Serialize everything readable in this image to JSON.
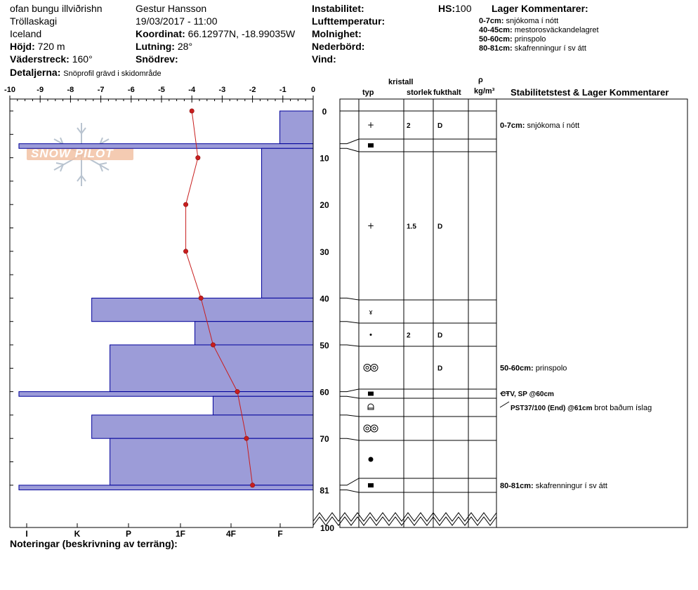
{
  "header": {
    "location": "ofan bungu illviðrishn",
    "region": "Tröllaskagi",
    "country": "Iceland",
    "elevation_label": "Höjd:",
    "elevation_value": "720 m",
    "aspect_label": "Väderstreck:",
    "aspect_value": "160°",
    "details_label": "Detaljerna:",
    "details_value": "Snöprofil grävd i skidområde",
    "observer": "Gestur Hansson",
    "datetime": "19/03/2017 - 11:00",
    "coord_label": "Koordinat:",
    "coord_value": "66.12977N, -18.99035W",
    "slope_label": "Lutning:",
    "slope_value": "28°",
    "drift_label": "Snödrev:",
    "instability_label": "Instabilitet:",
    "air_temp_label": "Lufttemperatur:",
    "cloud_label": "Molnighet:",
    "precip_label": "Nederbörd:",
    "wind_label": "Vind:",
    "hs_label": "HS:",
    "hs_value": "100",
    "layer_comments_title": "Lager Kommentarer:",
    "layer_comments": [
      {
        "range": "0-7cm:",
        "text": "snjókoma í nótt"
      },
      {
        "range": "40-45cm:",
        "text": "mestorosväckandelagret"
      },
      {
        "range": "50-60cm:",
        "text": "prinspolo"
      },
      {
        "range": "80-81cm:",
        "text": "skafrenningur í sv átt"
      }
    ]
  },
  "columns": {
    "kristall": "kristall",
    "typ": "typ",
    "storlek": "storlek",
    "fukthalt": "fukthalt",
    "rho": "ρ",
    "density_unit": "kg/m³",
    "stability": "Stabilitetstest & Lager Kommentarer"
  },
  "notes_label": "Noteringar (beskrivning av terräng):",
  "watermark": "SNOW PILOT",
  "colors": {
    "hardness_fill": "#9c9cd8",
    "hardness_stroke": "#00009a",
    "temp_line": "#c81e1e"
  },
  "chart_data": {
    "type": "bar",
    "temperature_axis": {
      "min": -10,
      "max": 0,
      "ticks": [
        "-10",
        "-9",
        "-8",
        "-7",
        "-6",
        "-5",
        "-4",
        "-3",
        "-2",
        "-1",
        "0"
      ]
    },
    "depth_axis": {
      "min": 0,
      "max": 81,
      "ticks": [
        "0",
        "10",
        "20",
        "30",
        "40",
        "50",
        "60",
        "70",
        "81"
      ],
      "break_label": "100"
    },
    "hardness_ticks": [
      "I",
      "K",
      "P",
      "1F",
      "4F",
      "F"
    ],
    "hardness_layers": [
      {
        "top": 0,
        "bottom": 7,
        "temp_equiv": -1.1
      },
      {
        "top": 7,
        "bottom": 8,
        "temp_equiv": -9.7
      },
      {
        "top": 8,
        "bottom": 40,
        "temp_equiv": -1.7
      },
      {
        "top": 40,
        "bottom": 45,
        "temp_equiv": -7.3
      },
      {
        "top": 45,
        "bottom": 50,
        "temp_equiv": -3.9
      },
      {
        "top": 50,
        "bottom": 60,
        "temp_equiv": -6.7
      },
      {
        "top": 60,
        "bottom": 61,
        "temp_equiv": -9.7
      },
      {
        "top": 61,
        "bottom": 65,
        "temp_equiv": -3.3
      },
      {
        "top": 65,
        "bottom": 70,
        "temp_equiv": -7.3
      },
      {
        "top": 70,
        "bottom": 80,
        "temp_equiv": -6.7
      },
      {
        "top": 80,
        "bottom": 81,
        "temp_equiv": -9.7
      }
    ],
    "temperature_profile": [
      {
        "depth": 0,
        "temp": -4.0
      },
      {
        "depth": 10,
        "temp": -3.8
      },
      {
        "depth": 20,
        "temp": -4.2
      },
      {
        "depth": 30,
        "temp": -4.2
      },
      {
        "depth": 40,
        "temp": -3.7
      },
      {
        "depth": 50,
        "temp": -3.3
      },
      {
        "depth": 60,
        "temp": -2.5
      },
      {
        "depth": 70,
        "temp": -2.2
      },
      {
        "depth": 80,
        "temp": -2.0
      }
    ],
    "layer_rows": [
      {
        "top": 0,
        "bottom": 7,
        "grain": "plus",
        "size": "2",
        "moisture": "D",
        "comment_range": "0-7cm:",
        "comment": "snjókoma í nótt"
      },
      {
        "top": 7,
        "bottom": 8,
        "grain": "square",
        "size": "",
        "moisture": "",
        "comment_range": "",
        "comment": ""
      },
      {
        "top": 8,
        "bottom": 40,
        "grain": "plus",
        "size": "1.5",
        "moisture": "D",
        "comment_range": "",
        "comment": ""
      },
      {
        "top": 40,
        "bottom": 45,
        "grain": "hoar",
        "size": "",
        "moisture": "",
        "comment_range": "",
        "comment": ""
      },
      {
        "top": 45,
        "bottom": 50,
        "grain": "dot",
        "size": "2",
        "moisture": "D",
        "comment_range": "",
        "comment": ""
      },
      {
        "top": 50,
        "bottom": 60,
        "grain": "double-ring",
        "size": "",
        "moisture": "D",
        "comment_range": "50-60cm:",
        "comment": "prinspolo"
      },
      {
        "top": 60,
        "bottom": 61,
        "grain": "square",
        "size": "",
        "moisture": "",
        "comment_range": "",
        "comment": ""
      },
      {
        "top": 61,
        "bottom": 65,
        "grain": "cup",
        "size": "",
        "moisture": "",
        "comment_range": "",
        "comment": ""
      },
      {
        "top": 65,
        "bottom": 70,
        "grain": "double-ring",
        "size": "",
        "moisture": "",
        "comment_range": "",
        "comment": ""
      },
      {
        "top": 70,
        "bottom": 80,
        "grain": "filled-circle",
        "size": "",
        "moisture": "",
        "comment_range": "",
        "comment": ""
      },
      {
        "top": 80,
        "bottom": 81,
        "grain": "square",
        "size": "",
        "moisture": "",
        "comment_range": "80-81cm:",
        "comment": "skafrenningur í sv átt"
      }
    ],
    "stability_tests": [
      {
        "depth": 60,
        "label": "CTV, SP @60cm",
        "extra": ""
      },
      {
        "depth": 61,
        "label": "PST37/100 (End) @61cm",
        "extra": "brot baðum íslag"
      }
    ]
  }
}
